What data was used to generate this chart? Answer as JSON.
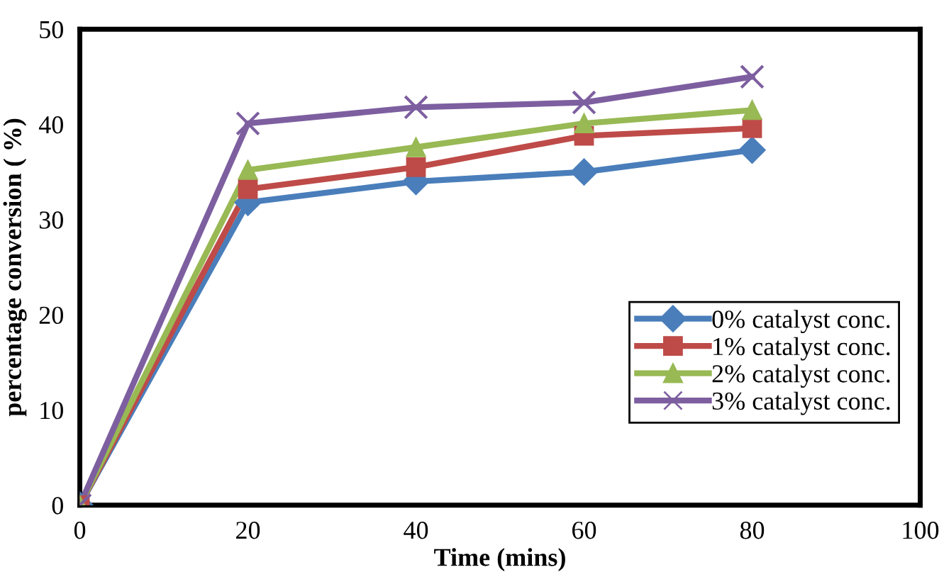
{
  "chart_data": {
    "type": "line",
    "xlabel": "Time (mins)",
    "ylabel": "percentage conversion ( %)",
    "x": [
      0,
      20,
      40,
      60,
      80
    ],
    "xlim": [
      0,
      100
    ],
    "xticks": [
      0,
      20,
      40,
      60,
      80,
      100
    ],
    "ylim": [
      0,
      50
    ],
    "yticks": [
      0,
      10,
      20,
      30,
      40,
      50
    ],
    "grid": false,
    "legend": "right",
    "line_style": "solid",
    "series": [
      {
        "name": "0% catalyst conc.",
        "color": "#4a7ebb",
        "marker": "diamond",
        "values": [
          0,
          31.8,
          34,
          35,
          37.3
        ]
      },
      {
        "name": "1% catalyst conc.",
        "color": "#be4b48",
        "marker": "square",
        "values": [
          0,
          33.2,
          35.5,
          38.8,
          39.6
        ]
      },
      {
        "name": "2% catalyst conc.",
        "color": "#98b954",
        "marker": "triangle",
        "values": [
          0,
          35.2,
          37.6,
          40.1,
          41.5
        ]
      },
      {
        "name": "3% catalyst conc.",
        "color": "#7d5fa0",
        "marker": "cross",
        "values": [
          0,
          40.1,
          41.8,
          42.3,
          45
        ]
      }
    ]
  }
}
